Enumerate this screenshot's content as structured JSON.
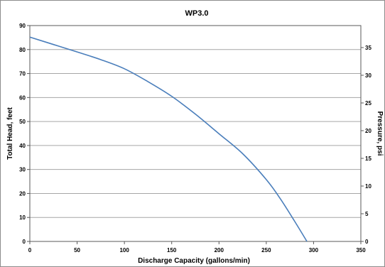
{
  "chart_data": {
    "type": "line",
    "title": "WP3.0",
    "xlabel": "Discharge Capacity (gallons/min)",
    "ylabel": "Total Head, feet",
    "y2label": "Pressure, psi",
    "xlim": [
      0,
      350
    ],
    "ylim": [
      0,
      90
    ],
    "y2lim": [
      0,
      38.97
    ],
    "x_ticks": [
      0,
      50,
      100,
      150,
      200,
      250,
      300,
      350
    ],
    "y_ticks": [
      0,
      10,
      20,
      30,
      40,
      50,
      60,
      70,
      80,
      90
    ],
    "y2_ticks": [
      0,
      5,
      10,
      15,
      20,
      25,
      30,
      35
    ],
    "grid": "horizontal",
    "legend": "none",
    "line_color": "#4a7ebb",
    "series": [
      {
        "x": [
          0,
          25,
          50,
          75,
          100,
          125,
          150,
          175,
          200,
          225,
          250,
          265,
          280,
          293
        ],
        "y": [
          85.2,
          82.1,
          79,
          75.8,
          72,
          66.6,
          60.5,
          53.1,
          44.9,
          36.6,
          25.8,
          17.7,
          8.4,
          0
        ]
      }
    ]
  }
}
